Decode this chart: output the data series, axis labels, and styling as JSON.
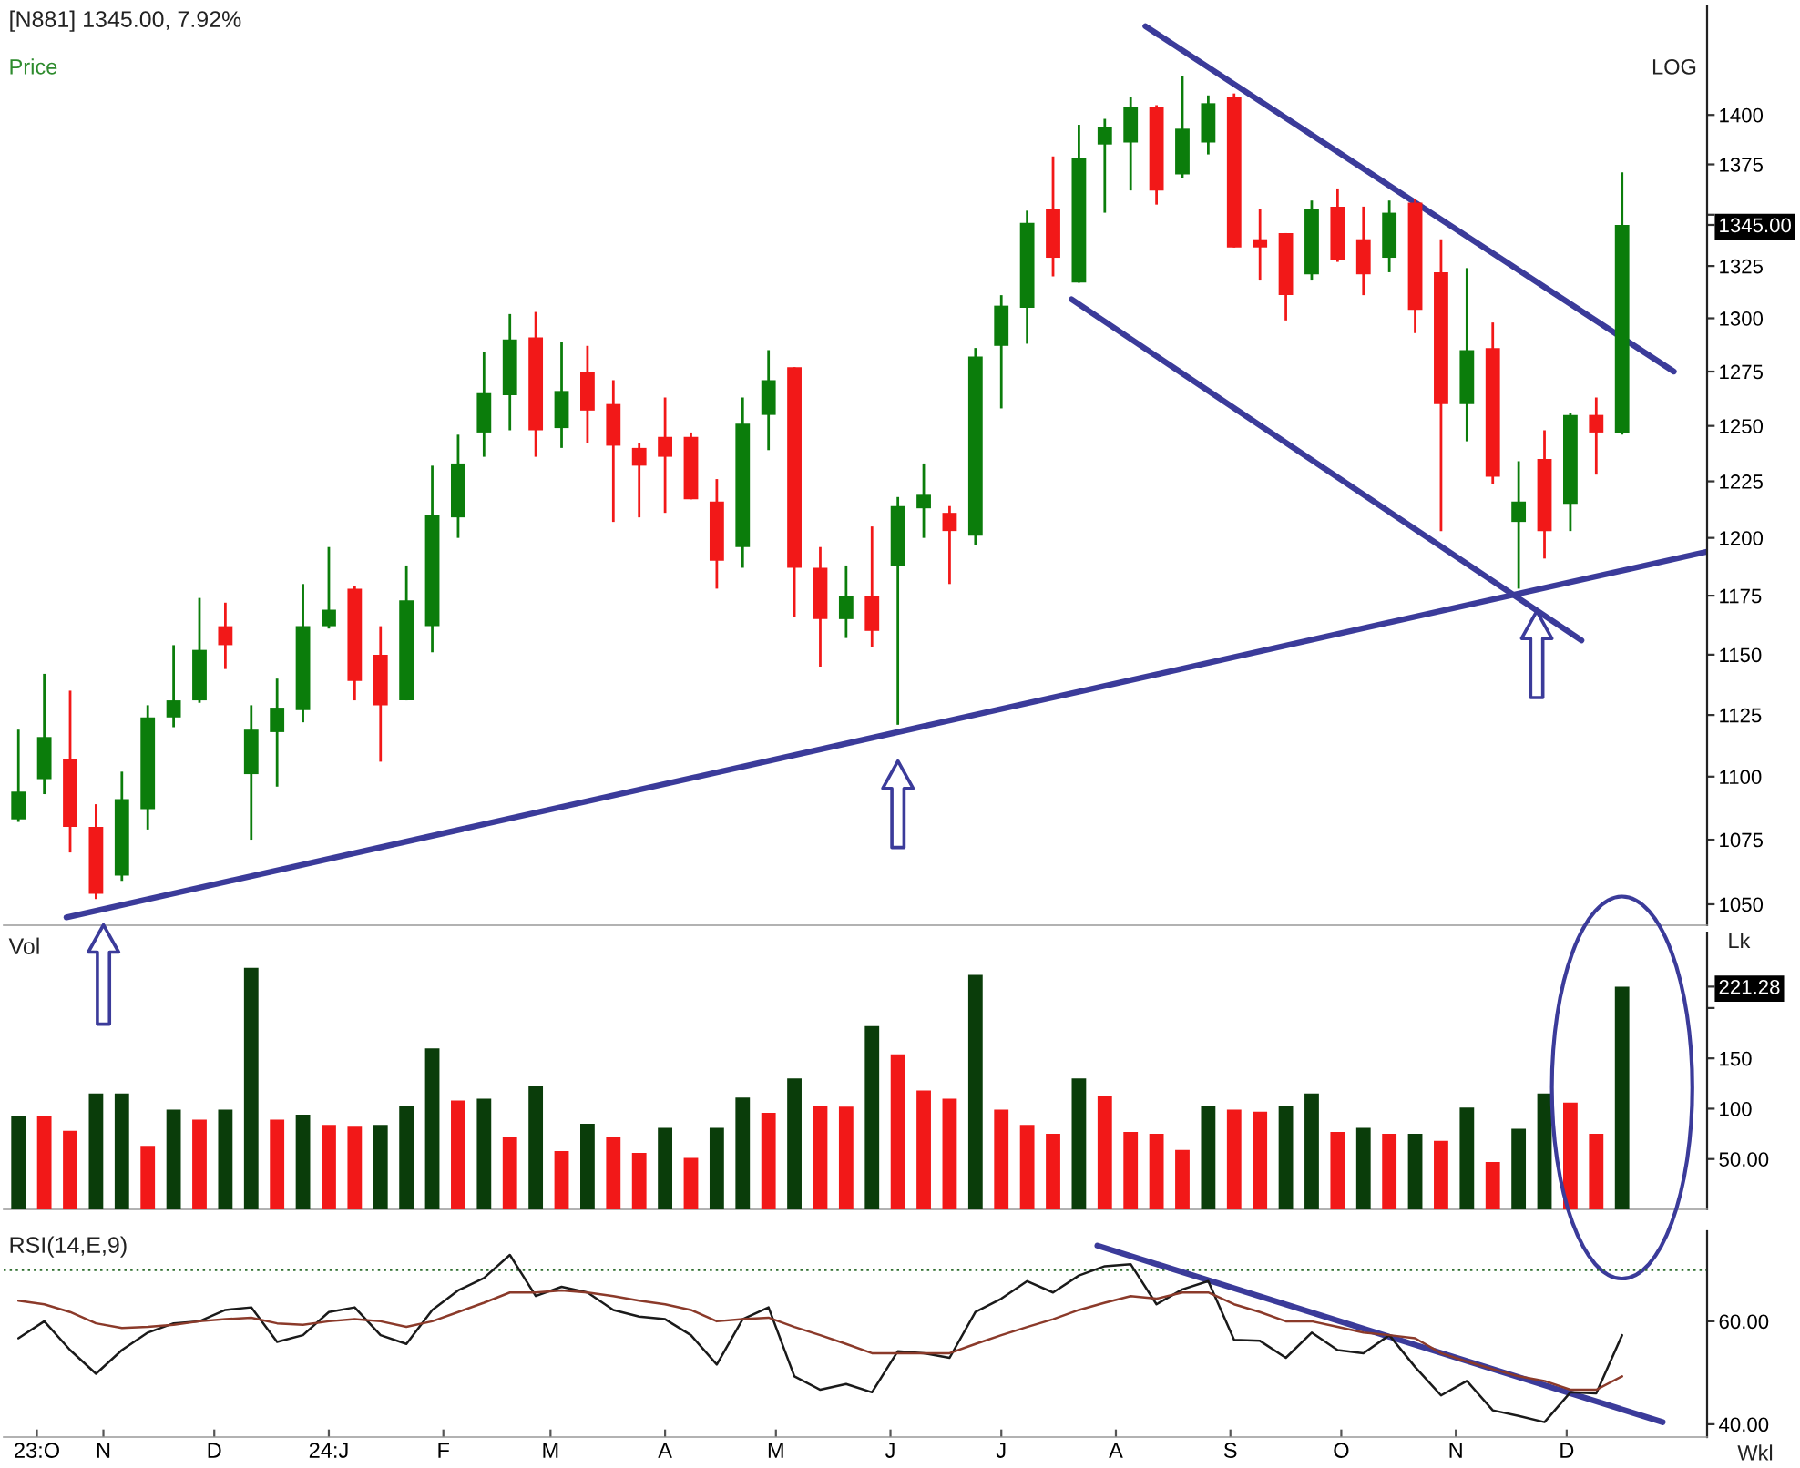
{
  "chart_data": [
    {
      "type": "candlestick",
      "title": "[N881] 1345.00, 7.92%",
      "x": [
        "2023-10-09",
        "2023-10-16",
        "2023-10-23",
        "2023-10-30",
        "2023-11-06",
        "2023-11-13",
        "2023-11-20",
        "2023-11-27",
        "2023-12-04",
        "2023-12-11",
        "2023-12-18",
        "2023-12-25",
        "2024-01-01",
        "2024-01-08",
        "2024-01-15",
        "2024-01-22",
        "2024-01-29",
        "2024-02-05",
        "2024-02-12",
        "2024-02-19",
        "2024-02-26",
        "2024-03-04",
        "2024-03-11",
        "2024-03-18",
        "2024-03-25",
        "2024-04-01",
        "2024-04-08",
        "2024-04-15",
        "2024-04-22",
        "2024-04-29",
        "2024-05-06",
        "2024-05-13",
        "2024-05-20",
        "2024-05-27",
        "2024-06-03",
        "2024-06-10",
        "2024-06-17",
        "2024-06-24",
        "2024-07-01",
        "2024-07-08",
        "2024-07-15",
        "2024-07-22",
        "2024-07-29",
        "2024-08-05",
        "2024-08-12",
        "2024-08-19",
        "2024-08-26",
        "2024-09-02",
        "2024-09-09",
        "2024-09-16",
        "2024-09-23",
        "2024-09-30",
        "2024-10-07",
        "2024-10-14",
        "2024-10-21",
        "2024-10-28",
        "2024-11-04",
        "2024-11-11",
        "2024-11-18",
        "2024-11-25",
        "2024-12-02",
        "2024-12-09",
        "2024-12-16"
      ],
      "ohlc": [
        [
          1083,
          1119,
          1082,
          1094
        ],
        [
          1099,
          1142,
          1093,
          1116
        ],
        [
          1107,
          1135,
          1070,
          1080
        ],
        [
          1080,
          1089,
          1052,
          1054
        ],
        [
          1061,
          1102,
          1059,
          1091
        ],
        [
          1087,
          1129,
          1079,
          1124
        ],
        [
          1124,
          1154,
          1120,
          1131
        ],
        [
          1131,
          1174,
          1130,
          1152
        ],
        [
          1162,
          1172,
          1144,
          1154
        ],
        [
          1101,
          1129,
          1075,
          1119
        ],
        [
          1118,
          1140,
          1096,
          1128
        ],
        [
          1127,
          1180,
          1122,
          1162
        ],
        [
          1162,
          1196,
          1161,
          1169
        ],
        [
          1178,
          1179,
          1131,
          1139
        ],
        [
          1150,
          1162,
          1106,
          1129
        ],
        [
          1131,
          1188,
          1131,
          1173
        ],
        [
          1162,
          1232,
          1151,
          1210
        ],
        [
          1209,
          1246,
          1200,
          1233
        ],
        [
          1247,
          1284,
          1236,
          1265
        ],
        [
          1264,
          1302,
          1248,
          1290
        ],
        [
          1291,
          1303,
          1236,
          1248
        ],
        [
          1249,
          1289,
          1240,
          1266
        ],
        [
          1275,
          1287,
          1242,
          1257
        ],
        [
          1260,
          1271,
          1207,
          1241
        ],
        [
          1240,
          1242,
          1209,
          1232
        ],
        [
          1245,
          1263,
          1211,
          1236
        ],
        [
          1245,
          1247,
          1217,
          1217
        ],
        [
          1216,
          1226,
          1178,
          1190
        ],
        [
          1196,
          1263,
          1187,
          1251
        ],
        [
          1255,
          1285,
          1239,
          1271
        ],
        [
          1277,
          1277,
          1166,
          1187
        ],
        [
          1187,
          1196,
          1145,
          1165
        ],
        [
          1165,
          1188,
          1157,
          1175
        ],
        [
          1175,
          1205,
          1153,
          1160
        ],
        [
          1188,
          1218,
          1121,
          1214
        ],
        [
          1213,
          1233,
          1200,
          1219
        ],
        [
          1211,
          1214,
          1180,
          1203
        ],
        [
          1201,
          1286,
          1197,
          1282
        ],
        [
          1287,
          1311,
          1258,
          1306
        ],
        [
          1305,
          1352,
          1288,
          1346
        ],
        [
          1353,
          1379,
          1320,
          1329
        ],
        [
          1317,
          1395,
          1317,
          1378
        ],
        [
          1385,
          1398,
          1351,
          1394
        ],
        [
          1386,
          1409,
          1362,
          1404
        ],
        [
          1404,
          1405,
          1355,
          1362
        ],
        [
          1370,
          1420,
          1368,
          1393
        ],
        [
          1386,
          1410,
          1380,
          1406
        ],
        [
          1409,
          1411,
          1334,
          1334
        ],
        [
          1338,
          1353,
          1318,
          1334
        ],
        [
          1341,
          1341,
          1299,
          1311
        ],
        [
          1321,
          1357,
          1318,
          1353
        ],
        [
          1354,
          1363,
          1327,
          1328
        ],
        [
          1338,
          1354,
          1311,
          1321
        ],
        [
          1329,
          1357,
          1322,
          1351
        ],
        [
          1356,
          1358,
          1293,
          1304
        ],
        [
          1322,
          1338,
          1203,
          1260
        ],
        [
          1260,
          1324,
          1243,
          1285
        ],
        [
          1286,
          1298,
          1224,
          1227
        ],
        [
          1207,
          1234,
          1178,
          1216
        ],
        [
          1235,
          1248,
          1191,
          1203
        ],
        [
          1215,
          1256,
          1203,
          1255
        ],
        [
          1255,
          1263,
          1228,
          1247
        ],
        [
          1247,
          1371,
          1246,
          1345
        ]
      ],
      "colors": [
        "#0b7d0b",
        "#0b7d0b",
        "#f21818",
        "#f21818",
        "#0b7d0b",
        "#0b7d0b",
        "#0b7d0b",
        "#0b7d0b",
        "#f21818",
        "#0b7d0b",
        "#0b7d0b",
        "#0b7d0b",
        "#0b7d0b",
        "#f21818",
        "#f21818",
        "#0b7d0b",
        "#0b7d0b",
        "#0b7d0b",
        "#0b7d0b",
        "#0b7d0b",
        "#f21818",
        "#0b7d0b",
        "#f21818",
        "#f21818",
        "#f21818",
        "#f21818",
        "#f21818",
        "#f21818",
        "#0b7d0b",
        "#0b7d0b",
        "#f21818",
        "#f21818",
        "#0b7d0b",
        "#f21818",
        "#0b7d0b",
        "#0b7d0b",
        "#f21818",
        "#0b7d0b",
        "#0b7d0b",
        "#0b7d0b",
        "#f21818",
        "#0b7d0b",
        "#0b7d0b",
        "#0b7d0b",
        "#f21818",
        "#0b7d0b",
        "#0b7d0b",
        "#f21818",
        "#f21818",
        "#f21818",
        "#0b7d0b",
        "#f21818",
        "#f21818",
        "#0b7d0b",
        "#f21818",
        "#f21818",
        "#0b7d0b",
        "#f21818",
        "#0b7d0b",
        "#f21818",
        "#0b7d0b",
        "#f21818",
        "#0b7d0b"
      ],
      "series": [
        {
          "type": "line",
          "color": "#3b3b9a",
          "x": [
            "2023-10-22",
            "2025-01-08"
          ],
          "values": [
            1045,
            1194
          ]
        },
        {
          "type": "line",
          "color": "#3b3b9a",
          "x": [
            "2024-08-09",
            "2024-12-30"
          ],
          "values": [
            1446,
            1275
          ]
        },
        {
          "type": "line",
          "color": "#3b3b9a",
          "x": [
            "2024-07-20",
            "2024-12-05"
          ],
          "values": [
            1309,
            1156
          ]
        }
      ],
      "annotations": [
        "Price",
        "LOG"
      ],
      "log": true,
      "xlim": [
        "2023-10-05",
        "2025-01-08"
      ],
      "ylim": [
        1042,
        1457
      ],
      "yticks": [
        1050,
        1075,
        1100,
        1125,
        1150,
        1175,
        1200,
        1225,
        1250,
        1275,
        1300,
        1325,
        {
          "value": 1345,
          "label": "1345.00"
        },
        {
          "value": 1350,
          "label": null
        },
        1375,
        1400
      ],
      "tick_labels": "y"
    },
    {
      "type": "bar",
      "title": "Vol",
      "ylabel": "Lk",
      "x": [
        "2023-10-09",
        "2023-10-16",
        "2023-10-23",
        "2023-10-30",
        "2023-11-06",
        "2023-11-13",
        "2023-11-20",
        "2023-11-27",
        "2023-12-04",
        "2023-12-11",
        "2023-12-18",
        "2023-12-25",
        "2024-01-01",
        "2024-01-08",
        "2024-01-15",
        "2024-01-22",
        "2024-01-29",
        "2024-02-05",
        "2024-02-12",
        "2024-02-19",
        "2024-02-26",
        "2024-03-04",
        "2024-03-11",
        "2024-03-18",
        "2024-03-25",
        "2024-04-01",
        "2024-04-08",
        "2024-04-15",
        "2024-04-22",
        "2024-04-29",
        "2024-05-06",
        "2024-05-13",
        "2024-05-20",
        "2024-05-27",
        "2024-06-03",
        "2024-06-10",
        "2024-06-17",
        "2024-06-24",
        "2024-07-01",
        "2024-07-08",
        "2024-07-15",
        "2024-07-22",
        "2024-07-29",
        "2024-08-05",
        "2024-08-12",
        "2024-08-19",
        "2024-08-26",
        "2024-09-02",
        "2024-09-09",
        "2024-09-16",
        "2024-09-23",
        "2024-09-30",
        "2024-10-07",
        "2024-10-14",
        "2024-10-21",
        "2024-10-28",
        "2024-11-04",
        "2024-11-11",
        "2024-11-18",
        "2024-11-25",
        "2024-12-02",
        "2024-12-09",
        "2024-12-16"
      ],
      "values": [
        93,
        93,
        78,
        115,
        115,
        63,
        99,
        89,
        99,
        240,
        89,
        94,
        84,
        82,
        84,
        103,
        160,
        108,
        110,
        72,
        123,
        58,
        85,
        72,
        56,
        81,
        51,
        81,
        111,
        96,
        130,
        103,
        102,
        182,
        154,
        118,
        110,
        233,
        99,
        84,
        75,
        130,
        113,
        77,
        75,
        59,
        103,
        99,
        97,
        103,
        115,
        77,
        81,
        75,
        75,
        68,
        101,
        47,
        80,
        115,
        106,
        75,
        221.28
      ],
      "colors": [
        "#0a3d0a",
        "#f21818",
        "#f21818",
        "#0a3d0a",
        "#0a3d0a",
        "#f21818",
        "#0a3d0a",
        "#f21818",
        "#0a3d0a",
        "#0a3d0a",
        "#f21818",
        "#0a3d0a",
        "#f21818",
        "#f21818",
        "#0a3d0a",
        "#0a3d0a",
        "#0a3d0a",
        "#f21818",
        "#0a3d0a",
        "#f21818",
        "#0a3d0a",
        "#f21818",
        "#0a3d0a",
        "#f21818",
        "#f21818",
        "#0a3d0a",
        "#f21818",
        "#0a3d0a",
        "#0a3d0a",
        "#f21818",
        "#0a3d0a",
        "#f21818",
        "#f21818",
        "#0a3d0a",
        "#f21818",
        "#f21818",
        "#f21818",
        "#0a3d0a",
        "#f21818",
        "#f21818",
        "#f21818",
        "#0a3d0a",
        "#f21818",
        "#f21818",
        "#f21818",
        "#f21818",
        "#0a3d0a",
        "#f21818",
        "#f21818",
        "#0a3d0a",
        "#0a3d0a",
        "#f21818",
        "#0a3d0a",
        "#f21818",
        "#0a3d0a",
        "#f21818",
        "#0a3d0a",
        "#f21818",
        "#0a3d0a",
        "#0a3d0a",
        "#f21818",
        "#f21818",
        "#0a3d0a"
      ],
      "xlim": [
        "2023-10-05",
        "2025-01-08"
      ],
      "ylim": [
        0,
        275
      ],
      "yticks": [
        {
          "value": 50,
          "label": "50.00"
        },
        100,
        150,
        {
          "value": 200,
          "label": null
        },
        {
          "value": 221.28,
          "label": "221.28"
        }
      ],
      "tick_labels": "y"
    },
    {
      "type": "line",
      "title": "RSI(14,E,9)",
      "x": [
        "2023-10-09",
        "2023-10-16",
        "2023-10-23",
        "2023-10-30",
        "2023-11-06",
        "2023-11-13",
        "2023-11-20",
        "2023-11-27",
        "2023-12-04",
        "2023-12-11",
        "2023-12-18",
        "2023-12-25",
        "2024-01-01",
        "2024-01-08",
        "2024-01-15",
        "2024-01-22",
        "2024-01-29",
        "2024-02-05",
        "2024-02-12",
        "2024-02-19",
        "2024-02-26",
        "2024-03-04",
        "2024-03-11",
        "2024-03-18",
        "2024-03-25",
        "2024-04-01",
        "2024-04-08",
        "2024-04-15",
        "2024-04-22",
        "2024-04-29",
        "2024-05-06",
        "2024-05-13",
        "2024-05-20",
        "2024-05-27",
        "2024-06-03",
        "2024-06-10",
        "2024-06-17",
        "2024-06-24",
        "2024-07-01",
        "2024-07-08",
        "2024-07-15",
        "2024-07-22",
        "2024-07-29",
        "2024-08-05",
        "2024-08-12",
        "2024-08-19",
        "2024-08-26",
        "2024-09-02",
        "2024-09-09",
        "2024-09-16",
        "2024-09-23",
        "2024-09-30",
        "2024-10-07",
        "2024-10-14",
        "2024-10-21",
        "2024-10-28",
        "2024-11-04",
        "2024-11-11",
        "2024-11-18",
        "2024-11-25",
        "2024-12-02",
        "2024-12-09",
        "2024-12-16"
      ],
      "series": [
        {
          "color": "#1a1a1a",
          "values": [
            56.7,
            60,
            54.4,
            49.8,
            54.4,
            57.8,
            59.6,
            60,
            62.2,
            62.7,
            56,
            57.3,
            61.8,
            62.7,
            57.3,
            55.6,
            62.2,
            66,
            68.4,
            72.9,
            64.9,
            66.7,
            65.6,
            62.2,
            60.9,
            60.4,
            57.3,
            51.6,
            60.4,
            62.7,
            49.3,
            46.7,
            47.8,
            46.2,
            54.2,
            53.8,
            52.9,
            61.8,
            64.4,
            67.8,
            65.6,
            68.9,
            70.7,
            71.1,
            63.3,
            66.2,
            67.8,
            56.4,
            56.2,
            52.9,
            57.8,
            54.4,
            53.8,
            57.3,
            51.1,
            45.6,
            48.4,
            42.7,
            41.6,
            40.4,
            46.2,
            46,
            57.3
          ]
        },
        {
          "color": "#8b3a2a",
          "values": [
            64,
            63.3,
            61.8,
            59.6,
            58.7,
            58.9,
            59.3,
            60,
            60.4,
            60.7,
            59.6,
            59.3,
            60,
            60.4,
            60,
            58.9,
            60,
            61.8,
            63.6,
            65.6,
            65.6,
            66,
            65.6,
            64.9,
            64,
            63.3,
            62.2,
            60,
            60.4,
            60.7,
            58.9,
            57.3,
            55.6,
            53.8,
            53.8,
            53.8,
            53.8,
            55.6,
            57.3,
            58.9,
            60.4,
            62.2,
            63.6,
            64.9,
            64.4,
            65.6,
            65.6,
            63.3,
            61.8,
            60,
            60,
            58.9,
            57.8,
            57.3,
            56.7,
            53.8,
            52.2,
            50.7,
            49.3,
            48.4,
            46.7,
            46.7,
            49.3
          ]
        },
        {
          "type": "line",
          "color": "#3b3b9a",
          "x": [
            "2024-07-27",
            "2024-12-27"
          ],
          "values": [
            74.7,
            40.4
          ]
        }
      ],
      "ref_lines": [
        {
          "axis": "y",
          "value": 70,
          "color": "#2f6f2f",
          "line_style": "dotted"
        }
      ],
      "annotations": [
        "Wkl"
      ],
      "xlim": [
        "2023-10-05",
        "2025-01-08"
      ],
      "ylim": [
        37.5,
        77.5
      ],
      "yticks": [
        {
          "value": 60,
          "label": "60.00"
        },
        {
          "value": 40,
          "label": "40.00"
        }
      ],
      "xticks": [
        {
          "value": "2023-10-14",
          "label": "23:O"
        },
        {
          "value": "2023-11-01",
          "label": "N"
        },
        {
          "value": "2023-12-01",
          "label": "D"
        },
        {
          "value": "2024-01-01",
          "label": "24:J"
        },
        {
          "value": "2024-02-01",
          "label": "F"
        },
        {
          "value": "2024-03-01",
          "label": "M"
        },
        {
          "value": "2024-04-01",
          "label": "A"
        },
        {
          "value": "2024-05-01",
          "label": "M"
        },
        {
          "value": "2024-06-01",
          "label": "J"
        },
        {
          "value": "2024-07-01",
          "label": "J"
        },
        {
          "value": "2024-08-01",
          "label": "A"
        },
        {
          "value": "2024-09-01",
          "label": "S"
        },
        {
          "value": "2024-10-01",
          "label": "O"
        },
        {
          "value": "2024-11-01",
          "label": "N"
        },
        {
          "value": "2024-12-01",
          "label": "D"
        }
      ]
    }
  ]
}
